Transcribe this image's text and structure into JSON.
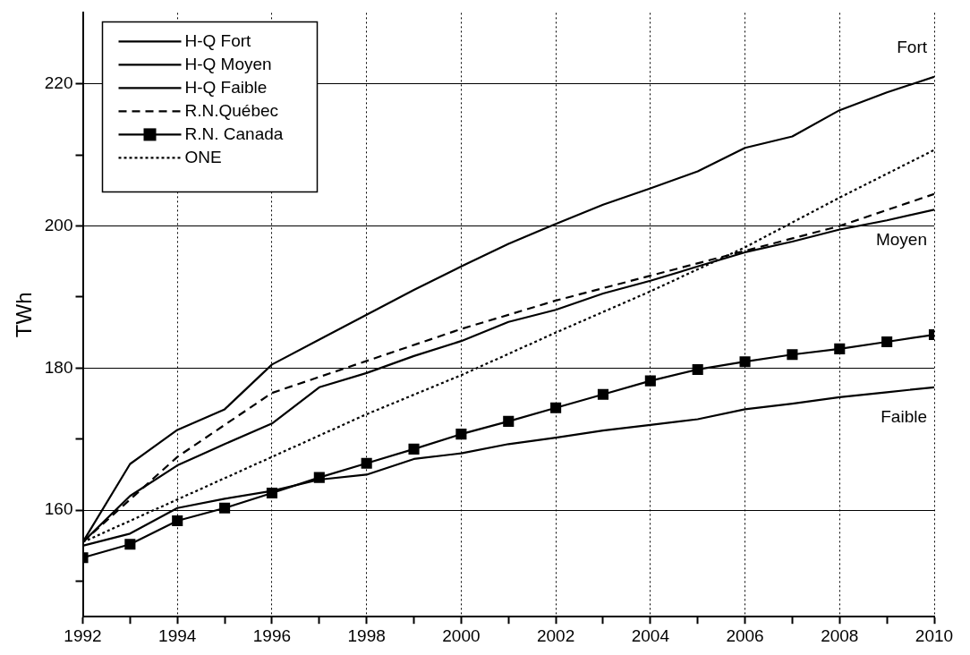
{
  "chart_data": {
    "type": "line",
    "ylabel": "TWh",
    "xlim": [
      1992,
      2010
    ],
    "ylim": [
      145,
      230
    ],
    "xticks": [
      1992,
      {
        "value": 1993,
        "label": null
      },
      1994,
      {
        "value": 1995,
        "label": null
      },
      1996,
      {
        "value": 1997,
        "label": null
      },
      1998,
      {
        "value": 1999,
        "label": null
      },
      2000,
      {
        "value": 2001,
        "label": null
      },
      2002,
      {
        "value": 2003,
        "label": null
      },
      2004,
      {
        "value": 2005,
        "label": null
      },
      2006,
      {
        "value": 2007,
        "label": null
      },
      2008,
      {
        "value": 2009,
        "label": null
      },
      2010
    ],
    "yticks": [
      {
        "value": 150,
        "label": null
      },
      160,
      {
        "value": 170,
        "label": null
      },
      180,
      {
        "value": 190,
        "label": null
      },
      200,
      {
        "value": 210,
        "label": null
      },
      220
    ],
    "grid": true,
    "legend": "top left",
    "marker": "none",
    "x": [
      1992,
      1993,
      1994,
      1995,
      1996,
      1997,
      1998,
      1999,
      2000,
      2001,
      2002,
      2003,
      2004,
      2005,
      2006,
      2007,
      2008,
      2009,
      2010
    ],
    "series": [
      {
        "name": "H-Q Fort",
        "color": "#000000",
        "line_style": "solid",
        "values": [
          155.5,
          166.5,
          171.3,
          174.2,
          180.5,
          184,
          187.5,
          191,
          194.3,
          197.5,
          200.3,
          203,
          205.3,
          207.7,
          211,
          212.6,
          216.3,
          218.8,
          221
        ]
      },
      {
        "name": "H-Q Moyen",
        "color": "#000000",
        "line_style": "solid",
        "values": [
          155.5,
          162,
          166.3,
          169.3,
          172.2,
          177.3,
          179.3,
          181.7,
          183.8,
          186.5,
          188.2,
          190.5,
          192.3,
          194.3,
          196.3,
          197.8,
          199.5,
          200.8,
          202.3
        ]
      },
      {
        "name": "H-Q Faible",
        "color": "#000000",
        "line_style": "solid",
        "values": [
          155,
          156.7,
          160.3,
          161.6,
          162.7,
          164.3,
          165,
          167.2,
          168,
          169.3,
          170.2,
          171.2,
          172,
          172.8,
          174.2,
          175,
          175.9,
          176.6,
          177.3
        ]
      },
      {
        "name": "R.N.Québec",
        "color": "#000000",
        "line_style": "dashed",
        "x": [
          1992,
          1994,
          1996,
          1998,
          2000,
          2002,
          2004,
          2006,
          2008,
          2010
        ],
        "values": [
          155.5,
          167.5,
          176.5,
          181,
          185.5,
          189.5,
          193,
          196.5,
          200,
          204.5
        ]
      },
      {
        "name": "R.N. Canada",
        "color": "#000000",
        "line_style": "solid",
        "marker": "square",
        "values": [
          153.3,
          155.2,
          158.5,
          160.3,
          162.4,
          164.6,
          166.6,
          168.6,
          170.7,
          172.5,
          174.4,
          176.3,
          178.2,
          179.8,
          180.9,
          181.9,
          182.7,
          183.7,
          184.7
        ]
      },
      {
        "name": "ONE",
        "color": "#000000",
        "line_style": "dotted",
        "x": [
          1992,
          1994,
          1996,
          1998,
          2000,
          2002,
          2004,
          2006,
          2008,
          2010
        ],
        "values": [
          155.5,
          161.5,
          167.5,
          173.5,
          179,
          185,
          190.8,
          197,
          204,
          210.7
        ]
      }
    ],
    "annotations": [
      "Fort",
      "Moyen",
      "Faible"
    ]
  }
}
